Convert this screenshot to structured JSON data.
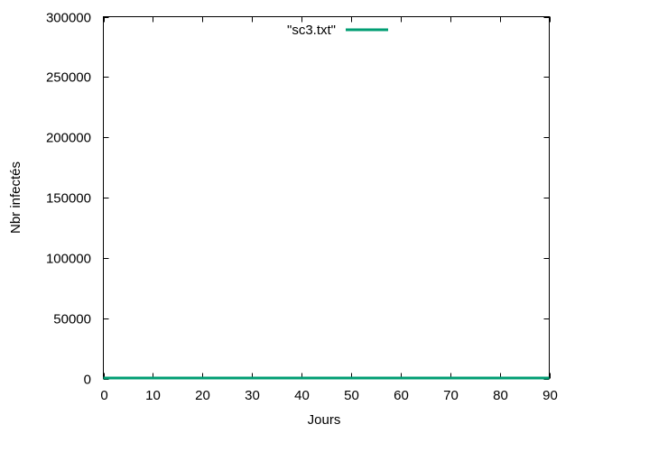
{
  "chart_data": {
    "type": "line",
    "title": "",
    "xlabel": "Jours",
    "ylabel": "Nbr infectés",
    "xlim": [
      0,
      90
    ],
    "ylim": [
      0,
      300000
    ],
    "x_ticks": [
      0,
      10,
      20,
      30,
      40,
      50,
      60,
      70,
      80,
      90
    ],
    "y_ticks": [
      0,
      50000,
      100000,
      150000,
      200000,
      250000,
      300000
    ],
    "grid": false,
    "legend_position": "top-center",
    "series": [
      {
        "name": "\"sc3.txt\"",
        "color": "#009e73",
        "x": [
          0,
          10,
          20,
          30,
          40,
          50,
          60,
          70,
          80,
          90
        ],
        "values": [
          0,
          0,
          0,
          0,
          0,
          0,
          0,
          0,
          0,
          0
        ]
      }
    ]
  }
}
